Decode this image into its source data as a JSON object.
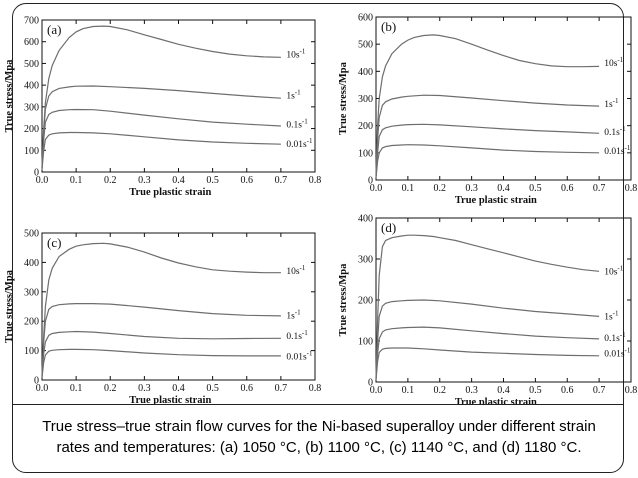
{
  "caption": {
    "line1": "True stress–true strain flow curves for the Ni-based superalloy under different strain",
    "line2": "rates and temperatures: (a) 1050 °C, (b) 1100 °C, (c) 1140 °C, and (d) 1180 °C."
  },
  "chart_data": [
    {
      "type": "line",
      "panel_label": "(a)",
      "xlabel": "True plastic strain",
      "ylabel": "True stress/Mpa",
      "xlim": [
        0,
        0.8
      ],
      "ylim": [
        0,
        700
      ],
      "xticks": [
        0.0,
        0.1,
        0.2,
        0.3,
        0.4,
        0.5,
        0.6,
        0.7,
        0.8
      ],
      "xtick_labels": [
        "0.0",
        "0.1",
        "0.2",
        "0.3",
        "0.4",
        "0.5",
        "0.6",
        "0.7",
        "0.8"
      ],
      "yticks": [
        0,
        100,
        200,
        300,
        400,
        500,
        600,
        700
      ],
      "ytick_labels": [
        "0",
        "100",
        "200",
        "300",
        "400",
        "500",
        "600",
        "700"
      ],
      "line_color": "#6e6e6e",
      "series": [
        {
          "label_base": "10s",
          "label_exp": "-1",
          "label_y": 540,
          "x": [
            0,
            0.005,
            0.01,
            0.02,
            0.03,
            0.05,
            0.08,
            0.1,
            0.12,
            0.15,
            0.18,
            0.2,
            0.25,
            0.3,
            0.35,
            0.4,
            0.45,
            0.5,
            0.55,
            0.6,
            0.65,
            0.7
          ],
          "y": [
            20,
            200,
            320,
            430,
            490,
            560,
            620,
            645,
            660,
            670,
            672,
            670,
            655,
            632,
            610,
            588,
            570,
            555,
            543,
            535,
            530,
            528
          ]
        },
        {
          "label_base": "1s",
          "label_exp": "-1",
          "label_y": 352,
          "x": [
            0,
            0.005,
            0.01,
            0.02,
            0.03,
            0.05,
            0.08,
            0.1,
            0.15,
            0.2,
            0.3,
            0.4,
            0.5,
            0.6,
            0.7
          ],
          "y": [
            20,
            180,
            290,
            350,
            370,
            385,
            392,
            395,
            396,
            393,
            385,
            375,
            362,
            350,
            340
          ]
        },
        {
          "label_base": "0.1s",
          "label_exp": "-1",
          "label_y": 218,
          "x": [
            0,
            0.005,
            0.01,
            0.02,
            0.03,
            0.05,
            0.08,
            0.1,
            0.15,
            0.2,
            0.3,
            0.4,
            0.5,
            0.6,
            0.7
          ],
          "y": [
            15,
            150,
            230,
            265,
            275,
            283,
            287,
            288,
            287,
            280,
            262,
            245,
            230,
            220,
            212
          ]
        },
        {
          "label_base": "0.01s",
          "label_exp": "-1",
          "label_y": 130,
          "x": [
            0,
            0.005,
            0.01,
            0.02,
            0.03,
            0.05,
            0.08,
            0.1,
            0.15,
            0.2,
            0.3,
            0.4,
            0.5,
            0.6,
            0.7
          ],
          "y": [
            10,
            100,
            150,
            170,
            176,
            180,
            182,
            182,
            180,
            176,
            162,
            148,
            138,
            132,
            128
          ]
        }
      ]
    },
    {
      "type": "line",
      "panel_label": "(b)",
      "xlabel": "True plastic strain",
      "ylabel": "True stress/Mpa",
      "xlim": [
        0,
        0.8
      ],
      "ylim": [
        0,
        600
      ],
      "xticks": [
        0.0,
        0.1,
        0.2,
        0.3,
        0.4,
        0.5,
        0.6,
        0.7,
        0.8
      ],
      "xtick_labels": [
        "0.0",
        "0.1",
        "0.2",
        "0.3",
        "0.4",
        "0.5",
        "0.6",
        "0.7",
        "0.8"
      ],
      "yticks": [
        0,
        100,
        200,
        300,
        400,
        500,
        600
      ],
      "ytick_labels": [
        "0",
        "100",
        "200",
        "300",
        "400",
        "500",
        "600"
      ],
      "line_color": "#6e6e6e",
      "series": [
        {
          "label_base": "10s",
          "label_exp": "-1",
          "label_y": 430,
          "x": [
            0,
            0.005,
            0.01,
            0.02,
            0.03,
            0.05,
            0.08,
            0.1,
            0.12,
            0.15,
            0.18,
            0.2,
            0.25,
            0.3,
            0.35,
            0.4,
            0.45,
            0.5,
            0.55,
            0.6,
            0.65,
            0.7
          ],
          "y": [
            20,
            200,
            300,
            380,
            420,
            465,
            500,
            515,
            525,
            532,
            534,
            532,
            520,
            500,
            478,
            458,
            440,
            428,
            420,
            417,
            417,
            418
          ]
        },
        {
          "label_base": "1s",
          "label_exp": "-1",
          "label_y": 280,
          "x": [
            0,
            0.005,
            0.01,
            0.02,
            0.03,
            0.05,
            0.08,
            0.1,
            0.15,
            0.2,
            0.3,
            0.4,
            0.5,
            0.6,
            0.7
          ],
          "y": [
            15,
            150,
            230,
            275,
            288,
            298,
            305,
            308,
            312,
            311,
            302,
            292,
            283,
            276,
            272
          ]
        },
        {
          "label_base": "0.1s",
          "label_exp": "-1",
          "label_y": 177,
          "x": [
            0,
            0.005,
            0.01,
            0.02,
            0.03,
            0.05,
            0.08,
            0.1,
            0.15,
            0.2,
            0.3,
            0.4,
            0.5,
            0.6,
            0.7
          ],
          "y": [
            10,
            100,
            160,
            185,
            192,
            198,
            202,
            204,
            205,
            203,
            196,
            188,
            182,
            177,
            172
          ]
        },
        {
          "label_base": "0.01s",
          "label_exp": "-1",
          "label_y": 107,
          "x": [
            0,
            0.005,
            0.01,
            0.02,
            0.03,
            0.05,
            0.08,
            0.1,
            0.15,
            0.2,
            0.3,
            0.4,
            0.5,
            0.6,
            0.7
          ],
          "y": [
            8,
            70,
            100,
            118,
            123,
            127,
            129,
            130,
            129,
            126,
            118,
            110,
            105,
            102,
            100
          ]
        }
      ]
    },
    {
      "type": "line",
      "panel_label": "(c)",
      "xlabel": "True plastic strain",
      "ylabel": "True stress/Mpa",
      "xlim": [
        0,
        0.8
      ],
      "ylim": [
        0,
        500
      ],
      "xticks": [
        0.0,
        0.1,
        0.2,
        0.3,
        0.4,
        0.5,
        0.6,
        0.7,
        0.8
      ],
      "xtick_labels": [
        "0.0",
        "0.1",
        "0.2",
        "0.3",
        "0.4",
        "0.5",
        "0.6",
        "0.7",
        "0.8"
      ],
      "yticks": [
        0,
        100,
        200,
        300,
        400,
        500
      ],
      "ytick_labels": [
        "0",
        "100",
        "200",
        "300",
        "400",
        "500"
      ],
      "line_color": "#6e6e6e",
      "series": [
        {
          "label_base": "10s",
          "label_exp": "-1",
          "label_y": 370,
          "x": [
            0,
            0.005,
            0.01,
            0.02,
            0.03,
            0.05,
            0.08,
            0.1,
            0.12,
            0.15,
            0.18,
            0.2,
            0.25,
            0.3,
            0.35,
            0.4,
            0.45,
            0.5,
            0.55,
            0.6,
            0.65,
            0.7
          ],
          "y": [
            15,
            150,
            250,
            340,
            380,
            420,
            445,
            455,
            460,
            464,
            465,
            463,
            452,
            435,
            415,
            398,
            385,
            375,
            370,
            367,
            365,
            365
          ]
        },
        {
          "label_base": "1s",
          "label_exp": "-1",
          "label_y": 220,
          "x": [
            0,
            0.005,
            0.01,
            0.02,
            0.03,
            0.05,
            0.08,
            0.1,
            0.15,
            0.2,
            0.3,
            0.4,
            0.5,
            0.6,
            0.7
          ],
          "y": [
            12,
            130,
            200,
            240,
            250,
            256,
            259,
            260,
            260,
            258,
            248,
            236,
            226,
            220,
            218
          ]
        },
        {
          "label_base": "0.1s",
          "label_exp": "-1",
          "label_y": 150,
          "x": [
            0,
            0.005,
            0.01,
            0.02,
            0.03,
            0.05,
            0.08,
            0.1,
            0.15,
            0.2,
            0.3,
            0.4,
            0.5,
            0.6,
            0.7
          ],
          "y": [
            10,
            90,
            130,
            152,
            158,
            162,
            164,
            165,
            163,
            158,
            148,
            142,
            140,
            141,
            142
          ]
        },
        {
          "label_base": "0.01s",
          "label_exp": "-1",
          "label_y": 80,
          "x": [
            0,
            0.005,
            0.01,
            0.02,
            0.03,
            0.05,
            0.08,
            0.1,
            0.15,
            0.2,
            0.3,
            0.4,
            0.5,
            0.6,
            0.7
          ],
          "y": [
            8,
            60,
            85,
            98,
            101,
            103,
            104,
            104,
            103,
            100,
            92,
            86,
            83,
            82,
            82
          ]
        }
      ]
    },
    {
      "type": "line",
      "panel_label": "(d)",
      "xlabel": "True plastic strain",
      "ylabel": "True stress/Mpa",
      "xlim": [
        0,
        0.8
      ],
      "ylim": [
        0,
        400
      ],
      "xticks": [
        0.0,
        0.1,
        0.2,
        0.3,
        0.4,
        0.5,
        0.6,
        0.7,
        0.8
      ],
      "xtick_labels": [
        "0.0",
        "0.1",
        "0.2",
        "0.3",
        "0.4",
        "0.5",
        "0.6",
        "0.7",
        "0.8"
      ],
      "yticks": [
        0,
        100,
        200,
        300,
        400
      ],
      "ytick_labels": [
        "0",
        "100",
        "200",
        "300",
        "400"
      ],
      "line_color": "#6e6e6e",
      "series": [
        {
          "label_base": "10s",
          "label_exp": "-1",
          "label_y": 270,
          "x": [
            0,
            0.005,
            0.01,
            0.02,
            0.03,
            0.05,
            0.08,
            0.1,
            0.12,
            0.15,
            0.18,
            0.2,
            0.25,
            0.3,
            0.35,
            0.4,
            0.45,
            0.5,
            0.55,
            0.6,
            0.65,
            0.7
          ],
          "y": [
            10,
            150,
            260,
            330,
            345,
            352,
            356,
            358,
            358,
            357,
            355,
            352,
            345,
            335,
            325,
            315,
            305,
            295,
            287,
            280,
            274,
            270
          ]
        },
        {
          "label_base": "1s",
          "label_exp": "-1",
          "label_y": 160,
          "x": [
            0,
            0.005,
            0.01,
            0.02,
            0.03,
            0.05,
            0.08,
            0.1,
            0.15,
            0.2,
            0.3,
            0.4,
            0.5,
            0.6,
            0.7
          ],
          "y": [
            8,
            100,
            160,
            185,
            192,
            196,
            198,
            199,
            200,
            198,
            190,
            180,
            172,
            166,
            160
          ]
        },
        {
          "label_base": "0.1s",
          "label_exp": "-1",
          "label_y": 107,
          "x": [
            0,
            0.005,
            0.01,
            0.02,
            0.03,
            0.05,
            0.08,
            0.1,
            0.15,
            0.2,
            0.3,
            0.4,
            0.5,
            0.6,
            0.7
          ],
          "y": [
            6,
            70,
            105,
            122,
            127,
            130,
            132,
            133,
            134,
            132,
            125,
            118,
            112,
            108,
            105
          ]
        },
        {
          "label_base": "0.01s",
          "label_exp": "-1",
          "label_y": 70,
          "x": [
            0,
            0.005,
            0.01,
            0.02,
            0.03,
            0.05,
            0.08,
            0.1,
            0.15,
            0.2,
            0.3,
            0.4,
            0.5,
            0.6,
            0.7
          ],
          "y": [
            5,
            50,
            72,
            80,
            82,
            83,
            83,
            83,
            81,
            78,
            73,
            70,
            67,
            65,
            64
          ]
        }
      ]
    }
  ]
}
